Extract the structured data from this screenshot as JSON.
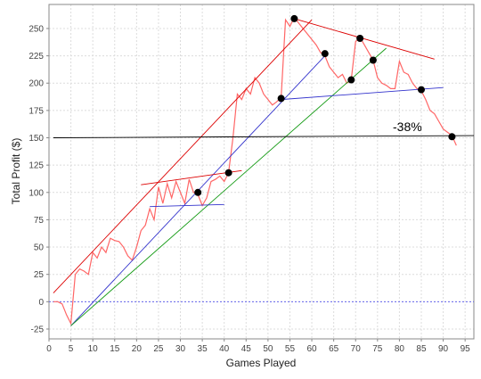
{
  "chart_data": {
    "type": "line",
    "xlabel": "Games Played",
    "ylabel": "Total Profit ($)",
    "x": [
      1,
      2,
      3,
      4,
      5,
      6,
      7,
      8,
      9,
      10,
      11,
      12,
      13,
      14,
      15,
      16,
      17,
      18,
      19,
      20,
      21,
      22,
      23,
      24,
      25,
      26,
      27,
      28,
      29,
      30,
      31,
      32,
      33,
      34,
      35,
      36,
      37,
      38,
      39,
      40,
      41,
      42,
      43,
      44,
      45,
      46,
      47,
      48,
      49,
      50,
      51,
      52,
      53,
      54,
      55,
      56,
      57,
      58,
      59,
      60,
      61,
      62,
      63,
      64,
      65,
      66,
      67,
      68,
      69,
      70,
      71,
      72,
      73,
      74,
      75,
      76,
      77,
      78,
      79,
      80,
      81,
      82,
      83,
      84,
      85,
      86,
      87,
      88,
      89,
      90,
      91,
      92,
      93
    ],
    "series": [
      {
        "color": "#ff6666",
        "values": [
          0,
          0,
          -2,
          -12,
          -20,
          25,
          30,
          28,
          25,
          45,
          40,
          50,
          45,
          58,
          56,
          55,
          50,
          42,
          38,
          50,
          65,
          70,
          85,
          75,
          105,
          90,
          108,
          95,
          110,
          100,
          90,
          112,
          100,
          98,
          88,
          95,
          110,
          112,
          115,
          110,
          118,
          150,
          190,
          185,
          195,
          190,
          205,
          200,
          190,
          185,
          180,
          183,
          187,
          258,
          252,
          260,
          255,
          250,
          245,
          240,
          235,
          228,
          225,
          215,
          210,
          205,
          208,
          200,
          203,
          238,
          242,
          235,
          228,
          221,
          205,
          200,
          198,
          195,
          195,
          220,
          210,
          208,
          200,
          195,
          193,
          185,
          175,
          172,
          165,
          158,
          155,
          152,
          143
        ]
      }
    ],
    "trend_lines": [
      {
        "color": "#dd0000",
        "x": [
          1,
          60
        ],
        "y": [
          8,
          258
        ]
      },
      {
        "color": "#3333cc",
        "x": [
          5,
          63
        ],
        "y": [
          -22,
          225
        ]
      },
      {
        "color": "#119911",
        "x": [
          5,
          77
        ],
        "y": [
          -22,
          232
        ]
      },
      {
        "color": "#dd0000",
        "x": [
          56,
          88
        ],
        "y": [
          259,
          222
        ]
      },
      {
        "color": "#3333cc",
        "x": [
          53,
          90
        ],
        "y": [
          185,
          196
        ]
      },
      {
        "color": "#000000",
        "x": [
          1,
          97
        ],
        "y": [
          150,
          152
        ]
      },
      {
        "color": "#dd0000",
        "x": [
          21,
          44
        ],
        "y": [
          107,
          120
        ]
      },
      {
        "color": "#3333cc",
        "x": [
          23,
          40
        ],
        "y": [
          87,
          89
        ]
      }
    ],
    "markers": {
      "color": "#000000",
      "x": [
        34,
        41,
        53,
        56,
        63,
        69,
        71,
        74,
        85,
        92
      ],
      "y": [
        100,
        118,
        186,
        259,
        227,
        203,
        241,
        221,
        194,
        151
      ]
    },
    "annotation": "-38%",
    "xlim": [
      0,
      97
    ],
    "ylim": [
      -34,
      272
    ],
    "xticks": [
      0,
      5,
      10,
      15,
      20,
      25,
      30,
      35,
      40,
      45,
      50,
      55,
      60,
      65,
      70,
      75,
      80,
      85,
      90,
      95
    ],
    "yticks": [
      -25,
      0,
      25,
      50,
      75,
      100,
      125,
      150,
      175,
      200,
      225,
      250
    ],
    "grid": true,
    "zero_line": true
  }
}
